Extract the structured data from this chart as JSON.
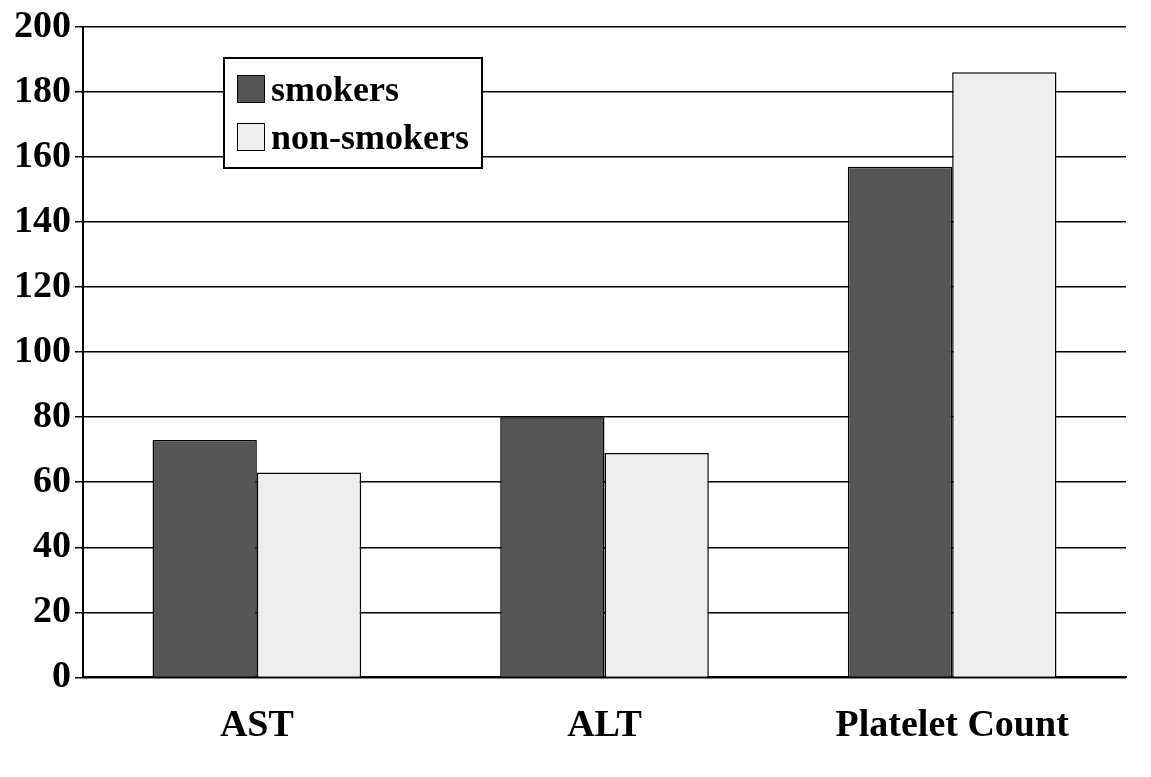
{
  "chart_data": {
    "type": "bar",
    "categories": [
      "AST",
      "ALT",
      "Platelet Count"
    ],
    "series": [
      {
        "name": "smokers",
        "color": "#555555",
        "values": [
          73,
          80,
          157
        ]
      },
      {
        "name": "non-smokers",
        "color": "#eeeeee",
        "values": [
          63,
          69,
          186
        ]
      }
    ],
    "ylim": [
      0,
      200
    ],
    "yticks": [
      0,
      20,
      40,
      60,
      80,
      100,
      120,
      140,
      160,
      180,
      200
    ],
    "grid": "y",
    "legend": "top left"
  }
}
